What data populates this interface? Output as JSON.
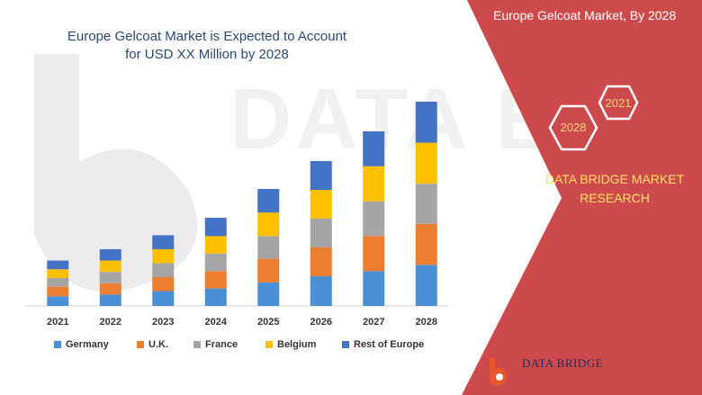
{
  "watermark": {
    "text": "DATA BRIDGE"
  },
  "panel": {
    "title": "Europe Gelcoat Market, By 2028",
    "hex_labels": [
      "2021",
      "2028"
    ],
    "company_name": "DATA BRIDGE MARKET RESEARCH",
    "panel_color": "#cd4a4c",
    "hex_outline_color": "#ffffff",
    "hex_text_color": "#f3d37a",
    "company_text_color": "#ffe066"
  },
  "logo": {
    "text": "DATA BRIDGE"
  },
  "chart_data": {
    "type": "bar",
    "stacked": true,
    "title": "Europe Gelcoat Market is Expected to Account for USD XX Million by 2028",
    "xlabel": "",
    "ylabel": "",
    "categories": [
      "2021",
      "2022",
      "2023",
      "2024",
      "2025",
      "2026",
      "2027",
      "2028"
    ],
    "series": [
      {
        "name": "Germany",
        "color": "#4a90d6",
        "values": [
          11,
          13,
          17,
          20,
          27,
          34,
          40,
          47
        ]
      },
      {
        "name": "U.K.",
        "color": "#ed7d31",
        "values": [
          11,
          13,
          16,
          20,
          27,
          33,
          40,
          47
        ]
      },
      {
        "name": "France",
        "color": "#a5a5a5",
        "values": [
          10,
          13,
          16,
          20,
          26,
          33,
          40,
          46
        ]
      },
      {
        "name": "Belgium",
        "color": "#ffc000",
        "values": [
          10,
          13,
          16,
          20,
          27,
          33,
          40,
          47
        ]
      },
      {
        "name": "Rest of Europe",
        "color": "#4472c4",
        "values": [
          10,
          13,
          16,
          21,
          27,
          33,
          40,
          47
        ]
      }
    ],
    "y_axis_visible": false,
    "grid": false,
    "legend_position": "bottom"
  }
}
